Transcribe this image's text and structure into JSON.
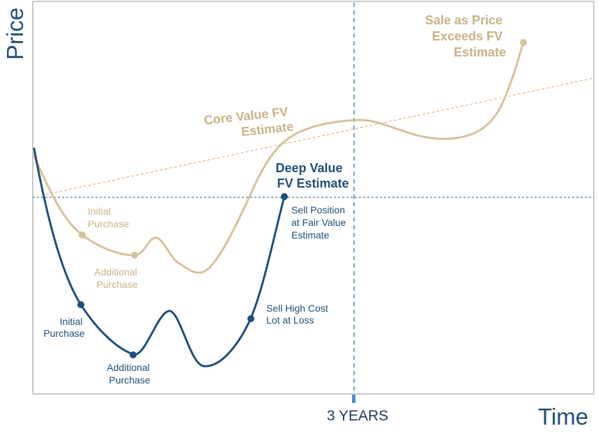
{
  "axes": {
    "y_label": "Price",
    "x_label": "Time",
    "x_tick_label": "3 YEARS"
  },
  "colors": {
    "core": "#d6c29b",
    "core_text": "#c9b287",
    "deep": "#1f4e79",
    "axis": "#c8c8c8",
    "marker": "#4a90d9"
  },
  "core_value": {
    "estimate_label": [
      "Core Value FV",
      "Estimate"
    ],
    "sale_label": [
      "Sale as Price",
      "Exceeds FV",
      "Estimate"
    ],
    "initial_label": [
      "Initial",
      "Purchase"
    ],
    "additional_label": [
      "Additional",
      "Purchase"
    ]
  },
  "deep_value": {
    "estimate_label": [
      "Deep Value",
      "FV Estimate"
    ],
    "initial_label": [
      "Initial",
      "Purchase"
    ],
    "additional_label": [
      "Additional",
      "Purchase"
    ],
    "loss_label": [
      "Sell High Cost",
      "Lot at Loss"
    ],
    "sell_label": [
      "Sell Position",
      "at Fair Value",
      "Estimate"
    ]
  }
}
